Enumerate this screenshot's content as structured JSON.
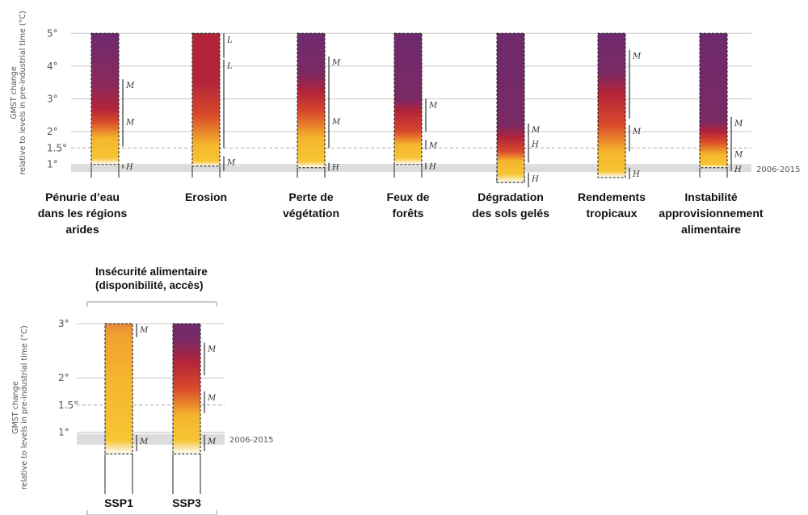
{
  "chart_data": [
    {
      "type": "bar",
      "title": "",
      "ylabel": "GMST change relative to levels in pre-industrial time (°C)",
      "ylim": [
        0,
        5
      ],
      "yticks": [
        {
          "value": 5,
          "label": "5°"
        },
        {
          "value": 4,
          "label": "4°"
        },
        {
          "value": 3,
          "label": "3°"
        },
        {
          "value": 2,
          "label": "2°"
        },
        {
          "value": 1.5,
          "label": "1.5°"
        },
        {
          "value": 1,
          "label": "1°"
        }
      ],
      "reference_band": {
        "label": "2006-2015",
        "range": [
          0.77,
          0.97
        ]
      },
      "reference_line": 1.5,
      "bars": [
        {
          "label": [
            "Pénurie d’eau",
            "dans les régions",
            "arides"
          ],
          "top": 5,
          "bottom": 1.0,
          "gradient": [
            [
              1.0,
              "#ffffff"
            ],
            [
              1.2,
              "#f6c534"
            ],
            [
              1.8,
              "#f5b52d"
            ],
            [
              2.3,
              "#d94a2b"
            ],
            [
              2.7,
              "#b3243a"
            ],
            [
              3.4,
              "#8a2a5c"
            ],
            [
              5.0,
              "#6e2a6e"
            ]
          ],
          "confidence": [
            {
              "from": 0.88,
              "to": 1.0,
              "text": "H"
            },
            {
              "from": 1.55,
              "to": 2.48,
              "text": "M"
            },
            {
              "from": 2.48,
              "to": 3.6,
              "text": "M"
            }
          ]
        },
        {
          "label": [
            "Erosion"
          ],
          "top": 5,
          "bottom": 0.95,
          "gradient": [
            [
              0.95,
              "#ffffff"
            ],
            [
              1.1,
              "#f6c534"
            ],
            [
              1.6,
              "#f5b52d"
            ],
            [
              2.5,
              "#d94a2b"
            ],
            [
              3.5,
              "#b3243a"
            ],
            [
              5.0,
              "#b3243a"
            ]
          ],
          "confidence": [
            {
              "from": 0.8,
              "to": 1.25,
              "text": "M"
            },
            {
              "from": 1.5,
              "to": 4.2,
              "text": "L"
            },
            {
              "from": 4.25,
              "to": 5.0,
              "text": "L"
            }
          ]
        },
        {
          "label": [
            "Perte de",
            "végétation"
          ],
          "top": 5,
          "bottom": 0.9,
          "gradient": [
            [
              0.9,
              "#ffffff"
            ],
            [
              1.1,
              "#f6c534"
            ],
            [
              1.8,
              "#f5b52d"
            ],
            [
              2.6,
              "#d94a2b"
            ],
            [
              3.2,
              "#b3243a"
            ],
            [
              3.8,
              "#7a2a64"
            ],
            [
              5.0,
              "#6e2a6e"
            ]
          ],
          "confidence": [
            {
              "from": 0.8,
              "to": 1.05,
              "text": "H"
            },
            {
              "from": 1.5,
              "to": 2.5,
              "text": "M"
            },
            {
              "from": 2.5,
              "to": 4.3,
              "text": "M"
            }
          ]
        },
        {
          "label": [
            "Feux de",
            "forêts"
          ],
          "top": 5,
          "bottom": 1.0,
          "gradient": [
            [
              1.0,
              "#ffffff"
            ],
            [
              1.2,
              "#f6c534"
            ],
            [
              1.6,
              "#f5b52d"
            ],
            [
              2.0,
              "#d94a2b"
            ],
            [
              2.6,
              "#b3243a"
            ],
            [
              3.0,
              "#7a2a64"
            ],
            [
              5.0,
              "#6e2a6e"
            ]
          ],
          "confidence": [
            {
              "from": 0.85,
              "to": 1.05,
              "text": "H"
            },
            {
              "from": 1.45,
              "to": 1.75,
              "text": "M"
            },
            {
              "from": 2.0,
              "to": 3.0,
              "text": "M"
            }
          ]
        },
        {
          "label": [
            "Dégradation",
            "des sols gelés"
          ],
          "top": 5,
          "bottom": 0.45,
          "gradient": [
            [
              0.45,
              "#ffffff"
            ],
            [
              0.7,
              "#f6c534"
            ],
            [
              1.1,
              "#f5b52d"
            ],
            [
              1.4,
              "#d94a2b"
            ],
            [
              1.8,
              "#b3243a"
            ],
            [
              2.2,
              "#7a2a64"
            ],
            [
              5.0,
              "#6e2a6e"
            ]
          ],
          "confidence": [
            {
              "from": 0.3,
              "to": 0.75,
              "text": "H"
            },
            {
              "from": 1.05,
              "to": 1.8,
              "text": "H"
            },
            {
              "from": 1.8,
              "to": 2.25,
              "text": "M"
            }
          ]
        },
        {
          "label": [
            "Rendements",
            "tropicaux"
          ],
          "top": 5,
          "bottom": 0.6,
          "gradient": [
            [
              0.6,
              "#ffffff"
            ],
            [
              0.8,
              "#f6c534"
            ],
            [
              1.4,
              "#f5b52d"
            ],
            [
              2.2,
              "#d94a2b"
            ],
            [
              3.2,
              "#b3243a"
            ],
            [
              3.8,
              "#7a2a64"
            ],
            [
              5.0,
              "#6e2a6e"
            ]
          ],
          "confidence": [
            {
              "from": 0.55,
              "to": 0.9,
              "text": "H"
            },
            {
              "from": 1.4,
              "to": 2.2,
              "text": "M"
            },
            {
              "from": 2.4,
              "to": 4.5,
              "text": "M"
            }
          ]
        },
        {
          "label": [
            "Instabilité",
            "approvisionnement",
            "alimentaire"
          ],
          "top": 5,
          "bottom": 0.9,
          "gradient": [
            [
              0.9,
              "#ffffff"
            ],
            [
              1.0,
              "#f6c534"
            ],
            [
              1.3,
              "#f5b52d"
            ],
            [
              1.7,
              "#d94a2b"
            ],
            [
              2.0,
              "#b3243a"
            ],
            [
              2.3,
              "#7a2a64"
            ],
            [
              5.0,
              "#6e2a6e"
            ]
          ],
          "confidence": [
            {
              "from": 0.8,
              "to": 0.95,
              "text": "H"
            },
            {
              "from": 0.95,
              "to": 1.5,
              "text": "M"
            },
            {
              "from": 1.5,
              "to": 2.45,
              "text": "M"
            }
          ]
        }
      ]
    },
    {
      "type": "bar",
      "title": "Insécurité alimentaire\n(disponibilité, accès)",
      "ylabel": "GMST change relative to levels in pre-industrial time (°C)",
      "ylim": [
        0,
        3
      ],
      "yticks": [
        {
          "value": 3,
          "label": "3°"
        },
        {
          "value": 2,
          "label": "2°"
        },
        {
          "value": 1.5,
          "label": "1.5°"
        },
        {
          "value": 1,
          "label": "1°"
        }
      ],
      "reference_band": {
        "label": "2006-2015",
        "range": [
          0.77,
          0.97
        ]
      },
      "reference_line": 1.5,
      "bars": [
        {
          "label": [
            "SSP1"
          ],
          "top": 3,
          "bottom": 0.6,
          "gradient": [
            [
              0.6,
              "#ffffff"
            ],
            [
              0.85,
              "#f6c534"
            ],
            [
              2.0,
              "#f5b52d"
            ],
            [
              2.8,
              "#f0a030"
            ],
            [
              3.0,
              "#e8893a"
            ]
          ],
          "confidence": [
            {
              "from": 0.65,
              "to": 0.95,
              "text": "M"
            },
            {
              "from": 2.75,
              "to": 3.0,
              "text": "M"
            }
          ]
        },
        {
          "label": [
            "SSP3"
          ],
          "top": 3,
          "bottom": 0.6,
          "gradient": [
            [
              0.6,
              "#ffffff"
            ],
            [
              0.85,
              "#f6c534"
            ],
            [
              1.3,
              "#f5b52d"
            ],
            [
              1.8,
              "#d94a2b"
            ],
            [
              2.3,
              "#b3243a"
            ],
            [
              2.7,
              "#7a2a64"
            ],
            [
              3.0,
              "#6e2a6e"
            ]
          ],
          "confidence": [
            {
              "from": 0.65,
              "to": 0.95,
              "text": "M"
            },
            {
              "from": 1.35,
              "to": 1.75,
              "text": "M"
            },
            {
              "from": 2.05,
              "to": 2.65,
              "text": "M"
            }
          ]
        }
      ]
    }
  ]
}
